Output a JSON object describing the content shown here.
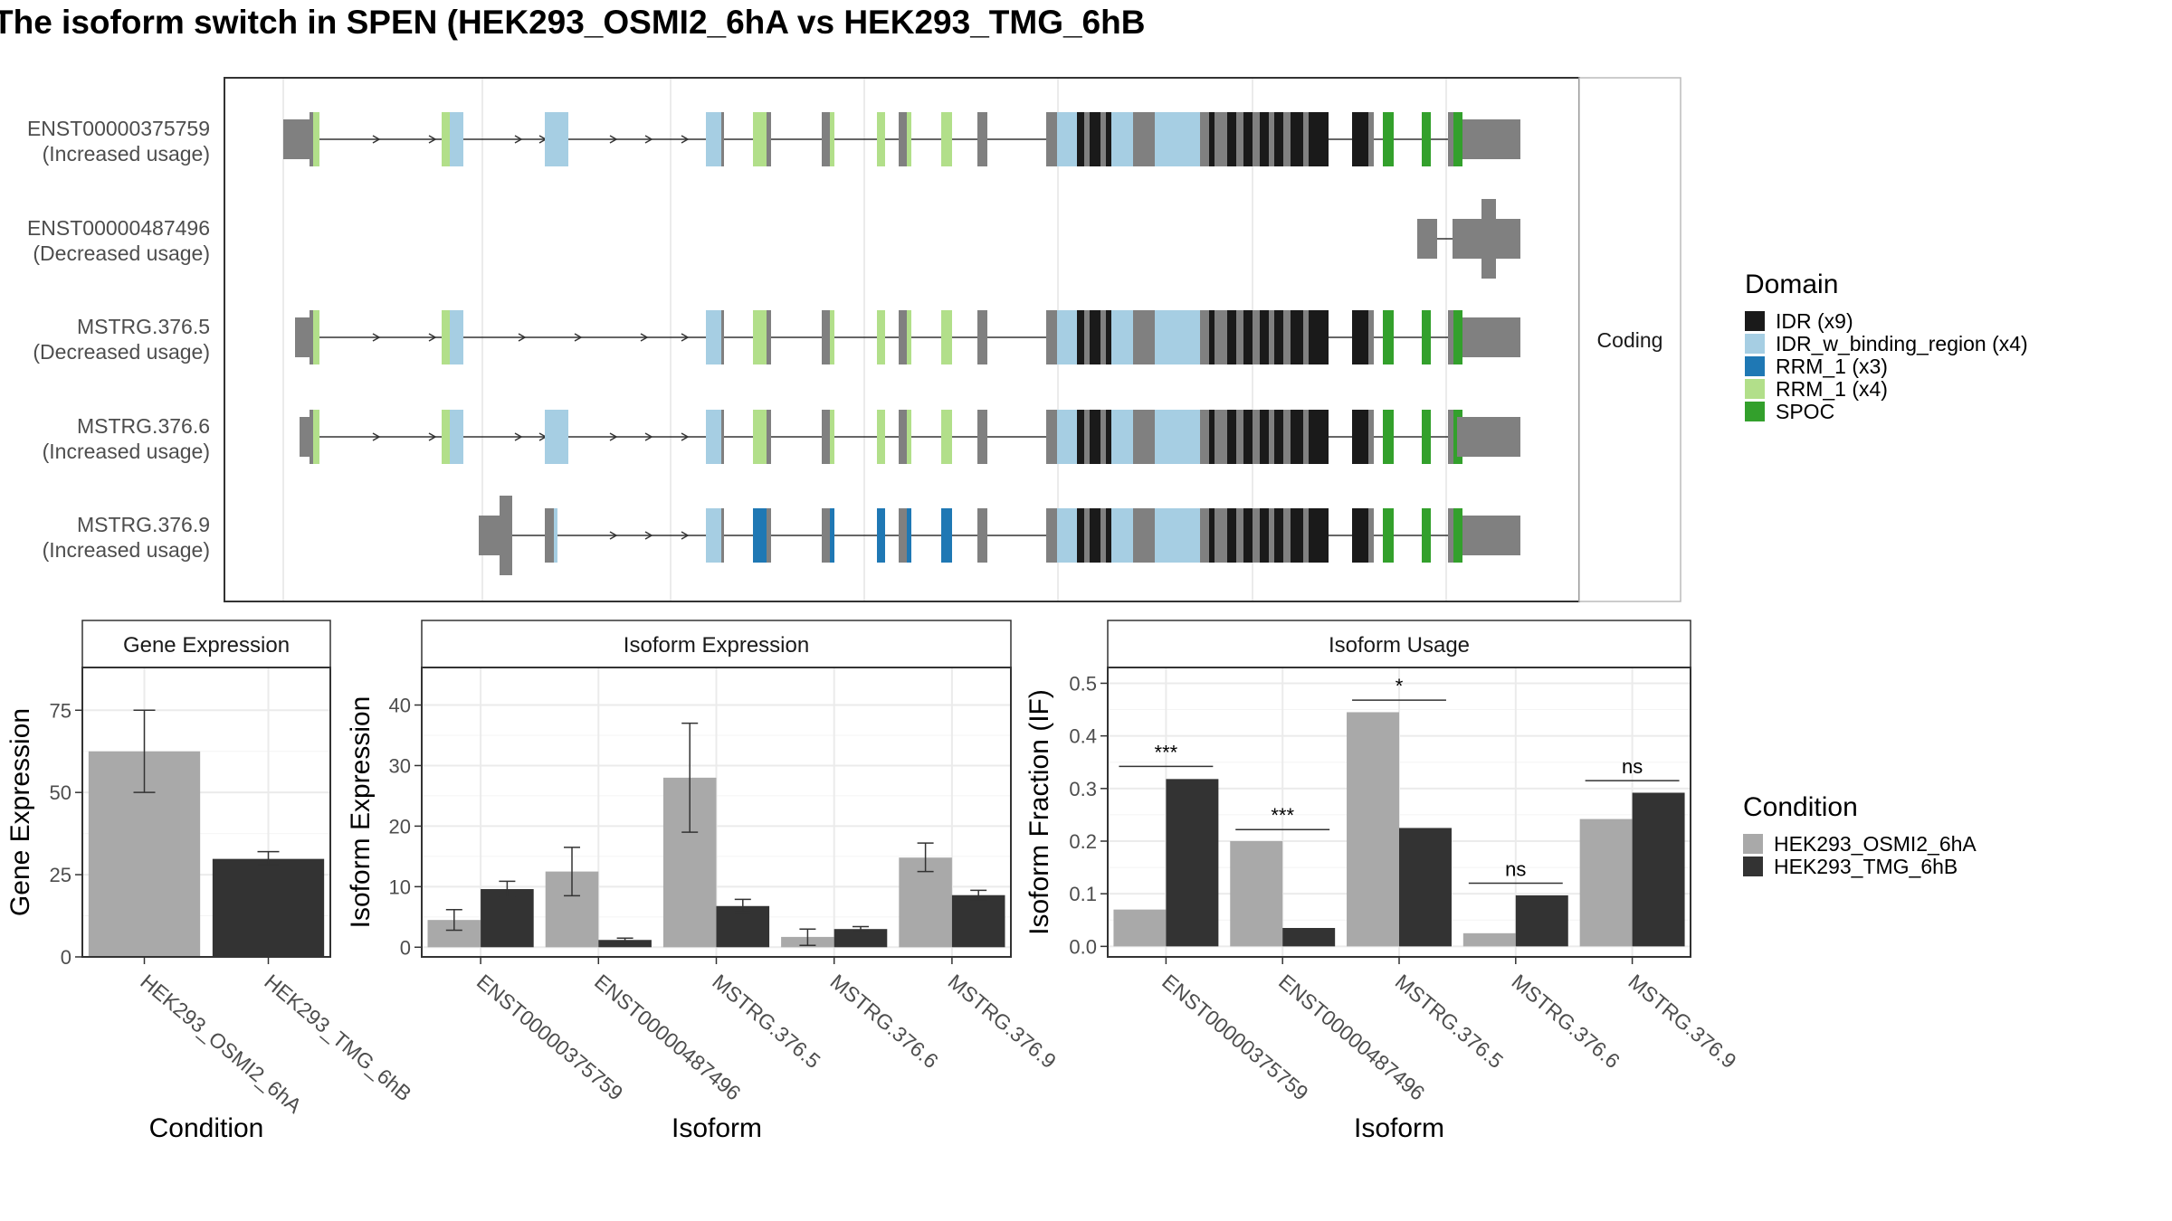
{
  "title": "The isoform switch in SPEN (HEK293_OSMI2_6hA vs HEK293_TMG_6hB",
  "colors": {
    "IDR": "#1a1a1a",
    "IDR_w_binding_region": "#a6cee3",
    "RRM_1_dark": "#1f78b4",
    "RRM_1_light": "#b2df8a",
    "SPOC": "#33a02c",
    "exon": "#808080",
    "cond_a": "#a9a9a9",
    "cond_b": "#333333"
  },
  "structure": {
    "facet_label": "Coding",
    "transcripts": [
      {
        "id": "ENST00000375759",
        "usage": "(Increased usage)"
      },
      {
        "id": "ENST00000487496",
        "usage": "(Decreased usage)"
      },
      {
        "id": "MSTRG.376.5",
        "usage": "(Decreased usage)"
      },
      {
        "id": "MSTRG.376.6",
        "usage": "(Increased usage)"
      },
      {
        "id": "MSTRG.376.9",
        "usage": "(Increased usage)"
      }
    ]
  },
  "domain_legend": {
    "title": "Domain",
    "items": [
      {
        "label": "IDR (x9)",
        "color": "#1a1a1a"
      },
      {
        "label": "IDR_w_binding_region (x4)",
        "color": "#a6cee3"
      },
      {
        "label": "RRM_1 (x3)",
        "color": "#1f78b4"
      },
      {
        "label": "RRM_1 (x4)",
        "color": "#b2df8a"
      },
      {
        "label": "SPOC",
        "color": "#33a02c"
      }
    ]
  },
  "condition_legend": {
    "title": "Condition",
    "items": [
      {
        "label": "HEK293_OSMI2_6hA",
        "color": "#a9a9a9"
      },
      {
        "label": "HEK293_TMG_6hB",
        "color": "#333333"
      }
    ]
  },
  "chart_data": [
    {
      "type": "bar",
      "title": "Gene Expression",
      "xlabel": "Condition",
      "ylabel": "Gene Expression",
      "categories": [
        "HEK293_OSMI2_6hA",
        "HEK293_TMG_6hB"
      ],
      "values": [
        62.5,
        29.8
      ],
      "errors": [
        [
          50,
          75
        ],
        [
          28,
          32
        ]
      ],
      "ylim": [
        0,
        88
      ],
      "yticks": [
        0,
        25,
        50,
        75
      ]
    },
    {
      "type": "bar",
      "title": "Isoform Expression",
      "xlabel": "Isoform",
      "ylabel": "Isoform Expression",
      "categories": [
        "ENST00000375759",
        "ENST00000487496",
        "MSTRG.376.5",
        "MSTRG.376.6",
        "MSTRG.376.9"
      ],
      "series": [
        {
          "name": "HEK293_OSMI2_6hA",
          "values": [
            4.5,
            12.5,
            28.0,
            1.7,
            14.8
          ],
          "errors": [
            [
              2.8,
              6.2
            ],
            [
              8.5,
              16.5
            ],
            [
              19.0,
              37.0
            ],
            [
              0.3,
              3.0
            ],
            [
              12.5,
              17.2
            ]
          ]
        },
        {
          "name": "HEK293_TMG_6hB",
          "values": [
            9.6,
            1.2,
            6.8,
            3.0,
            8.6
          ],
          "errors": [
            [
              8.3,
              10.9
            ],
            [
              0.9,
              1.5
            ],
            [
              5.8,
              7.9
            ],
            [
              2.6,
              3.4
            ],
            [
              7.8,
              9.4
            ]
          ]
        }
      ],
      "ylim": [
        -1.6,
        46.2
      ],
      "yticks": [
        0,
        10,
        20,
        30,
        40
      ]
    },
    {
      "type": "bar",
      "title": "Isoform Usage",
      "xlabel": "Isoform",
      "ylabel": "Isoform Fraction (IF)",
      "categories": [
        "ENST00000375759",
        "ENST00000487496",
        "MSTRG.376.5",
        "MSTRG.376.6",
        "MSTRG.376.9"
      ],
      "series": [
        {
          "name": "HEK293_OSMI2_6hA",
          "values": [
            0.07,
            0.2,
            0.445,
            0.025,
            0.242
          ]
        },
        {
          "name": "HEK293_TMG_6hB",
          "values": [
            0.318,
            0.035,
            0.225,
            0.097,
            0.292
          ]
        }
      ],
      "significance": [
        "***",
        "***",
        "*",
        "ns",
        "ns"
      ],
      "sig_levels": [
        0.342,
        0.222,
        0.468,
        0.12,
        0.315
      ],
      "ylim": [
        -0.02,
        0.53
      ],
      "yticks": [
        0.0,
        0.1,
        0.2,
        0.3,
        0.4,
        0.5
      ],
      "ytick_labels": [
        "0.0",
        "0.1",
        "0.2",
        "0.3",
        "0.4",
        "0.5"
      ]
    }
  ]
}
